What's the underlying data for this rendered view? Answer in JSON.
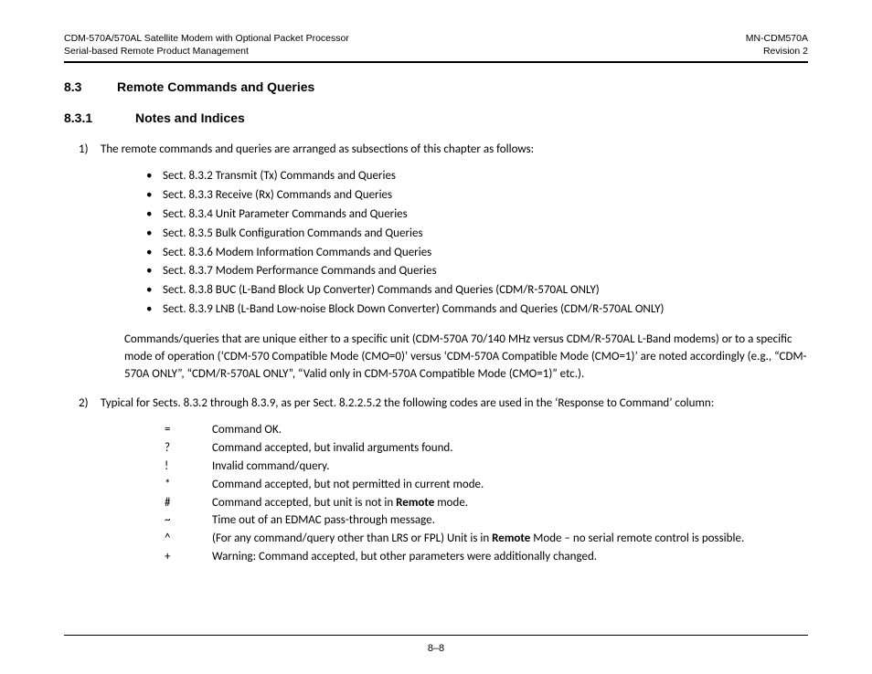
{
  "header": {
    "left_line1": "CDM-570A/570AL Satellite Modem with Optional Packet Processor",
    "left_line2": "Serial-based Remote Product Management",
    "right_line1": "MN-CDM570A",
    "right_line2": "Revision 2"
  },
  "section": {
    "num": "8.3",
    "title": "Remote Commands and Queries"
  },
  "subsection": {
    "num": "8.3.1",
    "title": "Notes and Indices"
  },
  "item1": {
    "marker": "1)",
    "lead": "The remote commands and queries are arranged as subsections of this chapter as follows:",
    "bullets": [
      "Sect. 8.3.2 Transmit (Tx) Commands and Queries",
      "Sect. 8.3.3 Receive (Rx) Commands and Queries",
      "Sect. 8.3.4 Unit Parameter Commands and Queries",
      "Sect. 8.3.5 Bulk Configuration Commands and Queries",
      "Sect. 8.3.6 Modem Information Commands and Queries",
      "Sect. 8.3.7 Modem Performance Commands and Queries",
      "Sect. 8.3.8 BUC (L-Band Block Up Converter) Commands and Queries (CDM/R-570AL ONLY)",
      "Sect. 8.3.9 LNB (L-Band Low-noise Block Down Converter) Commands and Queries (CDM/R-570AL ONLY)"
    ],
    "note": "Commands/queries that are unique either to a specific unit (CDM-570A 70/140 MHz versus CDM/R-570AL L-Band modems) or to a specific mode of operation (‘CDM-570 Compatible Mode (CMO=0)’ versus ‘CDM-570A Compatible Mode (CMO=1)’ are noted accordingly (e.g.,  “CDM-570A ONLY”, “CDM/R-570AL ONLY”, “Valid only in CDM-570A Compatible Mode (CMO=1)” etc.)."
  },
  "item2": {
    "marker": "2)",
    "lead": "Typical for Sects. 8.3.2 through 8.3.9, as per Sect. 8.2.2.5.2 the following codes are used in the ‘Response to Command’ column:",
    "codes": [
      {
        "sym": "=",
        "desc": "Command OK."
      },
      {
        "sym": "?",
        "desc": "Command accepted, but invalid arguments found."
      },
      {
        "sym": "!",
        "desc": "Invalid command/query."
      },
      {
        "sym": "*",
        "desc": "Command accepted, but not permitted in current mode."
      },
      {
        "sym": "#",
        "desc_pre": "Command accepted, but unit is not in ",
        "desc_bold": "Remote",
        "desc_post": " mode."
      },
      {
        "sym": "~",
        "desc": "Time out of an EDMAC pass-through message."
      },
      {
        "sym": "^",
        "desc_pre": "(For any command/query other than LRS or FPL) Unit is in ",
        "desc_bold": "Remote",
        "desc_post": " Mode – no serial remote control is possible."
      },
      {
        "sym": "+",
        "desc": "Warning: Command accepted, but other parameters were additionally changed."
      }
    ]
  },
  "footer": {
    "page_num": "8–8"
  }
}
